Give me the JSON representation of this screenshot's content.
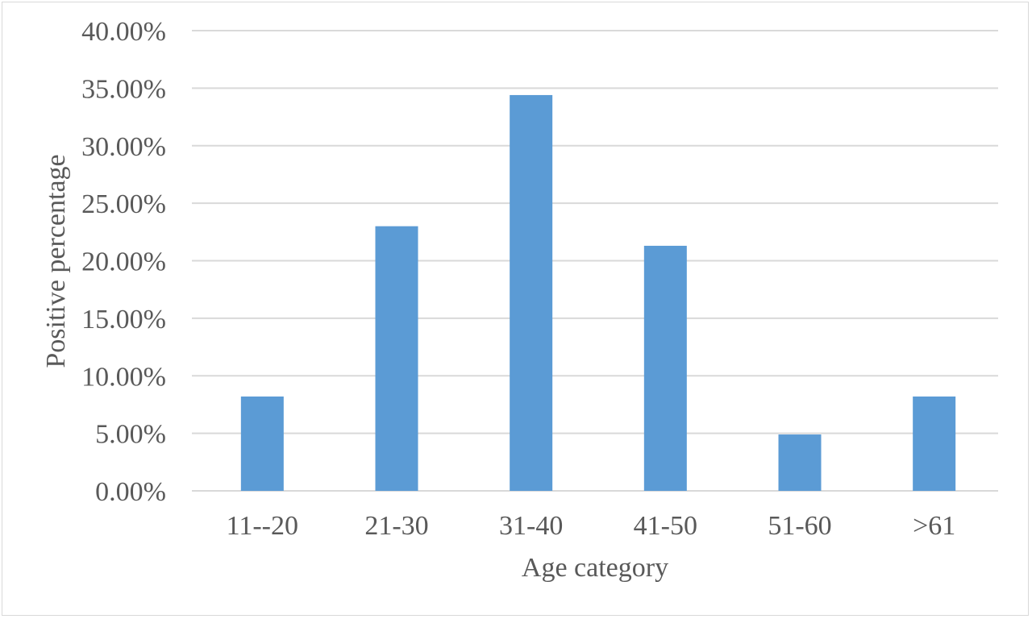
{
  "chart_data": {
    "type": "bar",
    "categories": [
      "11--20",
      "21-30",
      "31-40",
      "41-50",
      "51-60",
      ">61"
    ],
    "series": [
      {
        "values": [
          8.2,
          23.0,
          34.4,
          21.3,
          4.9,
          8.2
        ],
        "color": "#5b9bd5"
      }
    ],
    "title": "",
    "xlabel": "Age category",
    "ylabel": "Positive percentage",
    "ylim": [
      0,
      40
    ],
    "ytick_step": 5,
    "ytick_labels": [
      "0.00%",
      "5.00%",
      "10.00%",
      "15.00%",
      "20.00%",
      "25.00%",
      "30.00%",
      "35.00%",
      "40.00%"
    ],
    "grid": true,
    "legend": "none"
  }
}
